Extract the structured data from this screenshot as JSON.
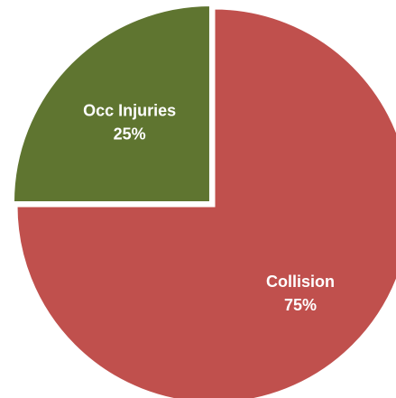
{
  "chart_data": {
    "type": "pie",
    "title": "",
    "slices": [
      {
        "label": "Collision",
        "value": 75,
        "value_label": "75%",
        "color": "#C0504D"
      },
      {
        "label": "Occ Injuries",
        "value": 25,
        "value_label": "25%",
        "color": "#5F7530"
      }
    ],
    "start_angle": "12 o'clock",
    "direction": "clockwise",
    "legend": "none",
    "slice_border_color": "#ffffff"
  }
}
